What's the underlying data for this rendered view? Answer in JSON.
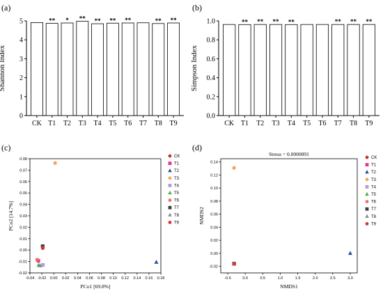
{
  "figure": {
    "panel_labels": [
      "(a)",
      "(b)",
      "(c)",
      "(d)"
    ]
  },
  "chart_data": [
    {
      "panel": "(a)",
      "type": "bar",
      "ylabel": "Shannon Index",
      "xlabel": "",
      "categories": [
        "CK",
        "T1",
        "T2",
        "T3",
        "T4",
        "T5",
        "T6",
        "T7",
        "T8",
        "T9"
      ],
      "values": [
        4.91,
        4.87,
        4.89,
        4.98,
        4.85,
        4.88,
        4.89,
        4.9,
        4.86,
        4.89
      ],
      "significance": [
        "",
        "**",
        "*",
        "**",
        "**",
        "**",
        "**",
        "",
        "**",
        "**"
      ],
      "ylim": [
        0,
        5
      ],
      "yticks": [
        0,
        1,
        2,
        3,
        4,
        5
      ],
      "bar_color": "#ffffff",
      "edge_color": "#000000"
    },
    {
      "panel": "(b)",
      "type": "bar",
      "ylabel": "Simpson Index",
      "xlabel": "",
      "categories": [
        "CK",
        "T1",
        "T2",
        "T3",
        "T4",
        "T5",
        "T6",
        "T7",
        "T8",
        "T9"
      ],
      "values": [
        0.962,
        0.961,
        0.962,
        0.962,
        0.961,
        0.962,
        0.962,
        0.962,
        0.962,
        0.962
      ],
      "significance": [
        "",
        "**",
        "**",
        "**",
        "**",
        "",
        "",
        "**",
        "**",
        "**"
      ],
      "ylim": [
        0,
        1.0
      ],
      "yticks": [
        "0.0",
        "0.2",
        "0.4",
        "0.6",
        "0.8",
        "1.0"
      ],
      "bar_color": "#ffffff",
      "edge_color": "#000000"
    },
    {
      "panel": "(c)",
      "type": "scatter",
      "xlabel": "PCo1 [69.8%]",
      "ylabel": "PCo2 [14.7%]",
      "xlim": [
        -0.04,
        0.18
      ],
      "ylim": [
        -0.02,
        0.08
      ],
      "xticks": [
        "-0.04",
        "-0.02",
        "0.00",
        "0.02",
        "0.04",
        "0.06",
        "0.08",
        "0.10",
        "0.12",
        "0.14",
        "0.16",
        "0.18"
      ],
      "yticks": [
        "-0.02",
        "-0.01",
        "0.00",
        "0.01",
        "0.02",
        "0.03",
        "0.04",
        "0.05",
        "0.06",
        "0.07",
        "0.08"
      ],
      "legend_position": "right",
      "series": [
        {
          "name": "CK",
          "color": "#c0392b",
          "marker": "circle",
          "x": -0.017,
          "y": 0.001
        },
        {
          "name": "T1",
          "color": "#e8348a",
          "marker": "square",
          "x": -0.026,
          "y": -0.009
        },
        {
          "name": "T2",
          "color": "#2b4f9e",
          "marker": "triangle",
          "x": 0.171,
          "y": -0.011
        },
        {
          "name": "T3",
          "color": "#f5a55a",
          "marker": "circle",
          "x": 0.003,
          "y": 0.077
        },
        {
          "name": "T4",
          "color": "#b99ad6",
          "marker": "square",
          "x": -0.019,
          "y": -0.013
        },
        {
          "name": "T5",
          "color": "#4caf50",
          "marker": "triangle",
          "x": -0.024,
          "y": -0.014
        },
        {
          "name": "T6",
          "color": "#e8735f",
          "marker": "circle",
          "x": -0.028,
          "y": -0.008
        },
        {
          "name": "T7",
          "color": "#3d3d3d",
          "marker": "square",
          "x": -0.02,
          "y": 0.003
        },
        {
          "name": "T8",
          "color": "#8c8c8c",
          "marker": "triangle",
          "x": -0.022,
          "y": -0.013
        },
        {
          "name": "T9",
          "color": "#d93434",
          "marker": "circle",
          "x": -0.019,
          "y": 0.002
        }
      ]
    },
    {
      "panel": "(d)",
      "type": "scatter",
      "title": "Stress = 0.0000891",
      "xlabel": "NMDS1",
      "ylabel": "NMDS2",
      "xlim": [
        -0.7,
        3.2
      ],
      "ylim": [
        -0.03,
        0.145
      ],
      "xticks": [
        "-0.5",
        "0.0",
        "0.5",
        "1.0",
        "1.5",
        "2.0",
        "2.5",
        "3.0"
      ],
      "yticks": [
        "-0.02",
        "0.00",
        "0.02",
        "0.04",
        "0.06",
        "0.08",
        "0.10",
        "0.12",
        "0.14"
      ],
      "legend_position": "right",
      "series": [
        {
          "name": "CK",
          "color": "#c0392b",
          "marker": "circle",
          "x": -0.32,
          "y": -0.016
        },
        {
          "name": "T1",
          "color": "#e8348a",
          "marker": "square",
          "x": -0.32,
          "y": -0.016
        },
        {
          "name": "T2",
          "color": "#2b4f9e",
          "marker": "triangle",
          "x": 3.0,
          "y": 0.0
        },
        {
          "name": "T3",
          "color": "#f5a55a",
          "marker": "circle",
          "x": -0.32,
          "y": 0.131
        },
        {
          "name": "T4",
          "color": "#b99ad6",
          "marker": "square",
          "x": -0.32,
          "y": -0.016
        },
        {
          "name": "T5",
          "color": "#4caf50",
          "marker": "triangle",
          "x": -0.32,
          "y": -0.016
        },
        {
          "name": "T6",
          "color": "#e8735f",
          "marker": "circle",
          "x": -0.32,
          "y": -0.016
        },
        {
          "name": "T7",
          "color": "#3d3d3d",
          "marker": "square",
          "x": -0.32,
          "y": -0.016
        },
        {
          "name": "T8",
          "color": "#8c8c8c",
          "marker": "triangle",
          "x": -0.32,
          "y": -0.016
        },
        {
          "name": "T9",
          "color": "#d93434",
          "marker": "circle",
          "x": -0.32,
          "y": -0.016
        }
      ]
    }
  ]
}
